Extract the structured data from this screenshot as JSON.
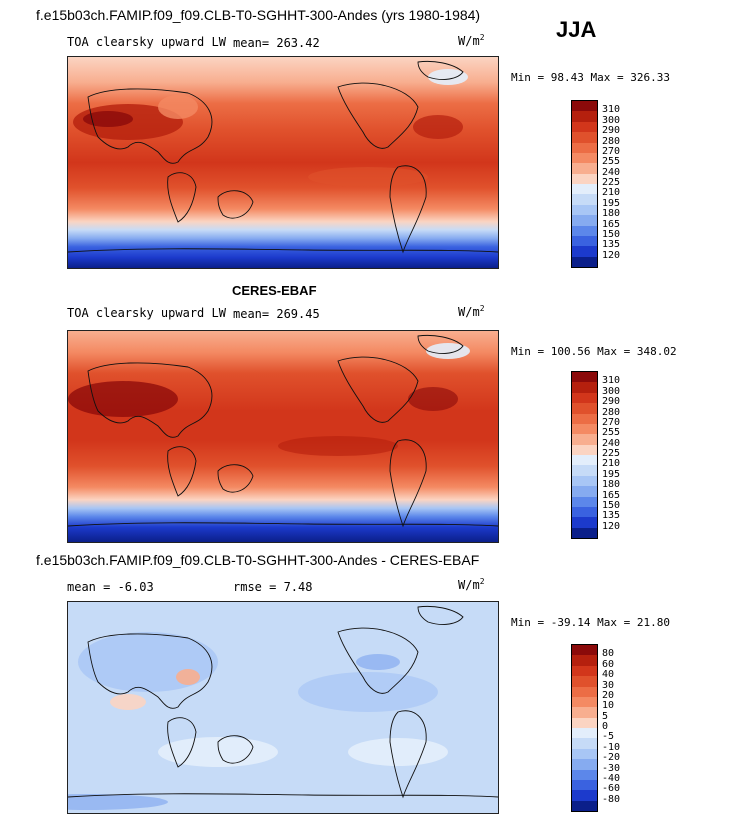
{
  "season": "JJA",
  "panels": [
    {
      "title": "f.e15b03ch.FAMIP.f09_f09.CLB-T0-SGHHT-300-Andes (yrs 1980-1984)",
      "variable": "TOA clearsky upward LW",
      "mean_text": "mean= 263.42",
      "rmse_text": "",
      "units": "W/m",
      "units_sup": "2",
      "minmax": "Min =  98.43 Max = 326.33",
      "levels": [
        "310",
        "300",
        "290",
        "280",
        "270",
        "255",
        "240",
        "225",
        "210",
        "195",
        "180",
        "165",
        "150",
        "135",
        "120"
      ],
      "colors": [
        "#8b0a0a",
        "#b5200e",
        "#d2361b",
        "#e0512c",
        "#ec6d45",
        "#f48a63",
        "#f8ae8f",
        "#fbd4c2",
        "#e3eefb",
        "#c6dbf7",
        "#a8c6f5",
        "#86abf0",
        "#5c87ea",
        "#3a62e0",
        "#1c3acc",
        "#0b1f8a"
      ]
    },
    {
      "title": "CERES-EBAF",
      "variable": "TOA clearsky upward LW",
      "mean_text": "mean= 269.45",
      "rmse_text": "",
      "units": "W/m",
      "units_sup": "2",
      "minmax": "Min = 100.56 Max = 348.02",
      "levels": [
        "310",
        "300",
        "290",
        "280",
        "270",
        "255",
        "240",
        "225",
        "210",
        "195",
        "180",
        "165",
        "150",
        "135",
        "120"
      ],
      "colors": [
        "#8b0a0a",
        "#b5200e",
        "#d2361b",
        "#e0512c",
        "#ec6d45",
        "#f48a63",
        "#f8ae8f",
        "#fbd4c2",
        "#e3eefb",
        "#c6dbf7",
        "#a8c6f5",
        "#86abf0",
        "#5c87ea",
        "#3a62e0",
        "#1c3acc",
        "#0b1f8a"
      ]
    },
    {
      "title": "f.e15b03ch.FAMIP.f09_f09.CLB-T0-SGHHT-300-Andes - CERES-EBAF",
      "variable": "",
      "mean_text": "mean =   -6.03",
      "rmse_text": "rmse =    7.48",
      "units": "W/m",
      "units_sup": "2",
      "minmax": "Min = -39.14 Max =  21.80",
      "levels": [
        "80",
        "60",
        "40",
        "30",
        "20",
        "10",
        "5",
        "0",
        "-5",
        "-10",
        "-20",
        "-30",
        "-40",
        "-60",
        "-80"
      ],
      "colors": [
        "#8b0a0a",
        "#b5200e",
        "#d2361b",
        "#e0512c",
        "#ec6d45",
        "#f48a63",
        "#f8ae8f",
        "#fbd4c2",
        "#e3eefb",
        "#c6dbf7",
        "#a8c6f5",
        "#86abf0",
        "#5c87ea",
        "#3a62e0",
        "#1c3acc",
        "#0b1f8a"
      ]
    }
  ],
  "chart_data": [
    {
      "type": "heatmap",
      "title": "f.e15b03ch.FAMIP.f09_f09.CLB-T0-SGHHT-300-Andes (yrs 1980-1984)",
      "variable": "TOA clearsky upward LW",
      "units": "W/m2",
      "mean": 263.42,
      "min": 98.43,
      "max": 326.33,
      "contour_levels": [
        120,
        135,
        150,
        165,
        180,
        195,
        210,
        225,
        240,
        255,
        270,
        280,
        290,
        300,
        310
      ]
    },
    {
      "type": "heatmap",
      "title": "CERES-EBAF",
      "variable": "TOA clearsky upward LW",
      "units": "W/m2",
      "mean": 269.45,
      "min": 100.56,
      "max": 348.02,
      "contour_levels": [
        120,
        135,
        150,
        165,
        180,
        195,
        210,
        225,
        240,
        255,
        270,
        280,
        290,
        300,
        310
      ]
    },
    {
      "type": "heatmap",
      "title": "f.e15b03ch.FAMIP.f09_f09.CLB-T0-SGHHT-300-Andes - CERES-EBAF",
      "units": "W/m2",
      "mean": -6.03,
      "rmse": 7.48,
      "min": -39.14,
      "max": 21.8,
      "contour_levels": [
        -80,
        -60,
        -40,
        -30,
        -20,
        -10,
        -5,
        0,
        5,
        10,
        20,
        30,
        40,
        60,
        80
      ]
    }
  ]
}
